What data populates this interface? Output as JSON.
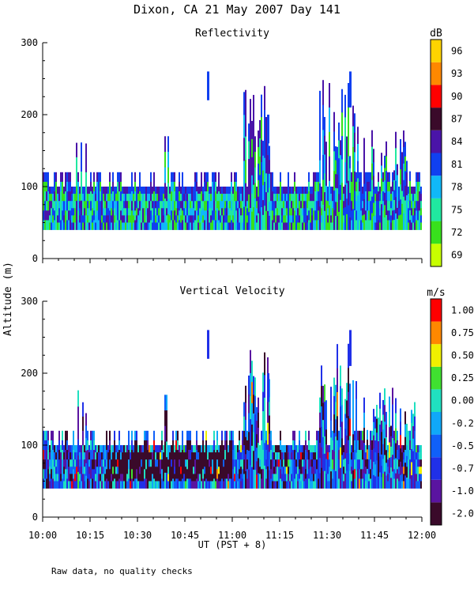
{
  "title": "Dixon, CA 21 May 2007  Day 141",
  "ylabel": "Altitude (m)",
  "xlabel": "UT  (PST + 8)",
  "footnote": "Raw data, no quality checks",
  "chart_data": [
    {
      "type": "heatmap",
      "title": "Reflectivity",
      "units": "dB",
      "ylim": [
        0,
        300
      ],
      "yticks": [
        "0",
        "100",
        "200",
        "300"
      ],
      "xlim_minutes": [
        0,
        120
      ],
      "xtick_labels": [
        "10:00",
        "10:15",
        "10:30",
        "10:45",
        "11:00",
        "11:15",
        "11:30",
        "11:45",
        "12:00"
      ],
      "colorbar": {
        "labels": [
          "69",
          "72",
          "75",
          "78",
          "81",
          "84",
          "87",
          "90",
          "93",
          "96"
        ],
        "colors": [
          "#c8ff00",
          "#38e01c",
          "#20e8a0",
          "#10b8f8",
          "#1040f0",
          "#4a14a8",
          "#3a0a2a",
          "#ff0000",
          "#ff8800",
          "#ffd400"
        ]
      },
      "echo_base_m": 40,
      "layer_top_m": 100
    },
    {
      "type": "heatmap",
      "title": "Vertical Velocity",
      "units": "m/s",
      "ylim": [
        0,
        300
      ],
      "yticks": [
        "0",
        "100",
        "200",
        "300"
      ],
      "xlim_minutes": [
        0,
        120
      ],
      "xtick_labels": [
        "10:00",
        "10:15",
        "10:30",
        "10:45",
        "11:00",
        "11:15",
        "11:30",
        "11:45",
        "12:00"
      ],
      "colorbar": {
        "labels": [
          "-2.00",
          "-1.00",
          "-0.75",
          "-0.50",
          "-0.25",
          "0.00",
          "0.25",
          "0.50",
          "0.75",
          "1.00"
        ],
        "colors": [
          "#3a0a2a",
          "#5a14a0",
          "#2030e8",
          "#1060f8",
          "#10a8f8",
          "#20e0c0",
          "#40e030",
          "#f0f000",
          "#ff8800",
          "#ff0000"
        ]
      },
      "echo_base_m": 40,
      "layer_top_m": 100
    }
  ]
}
